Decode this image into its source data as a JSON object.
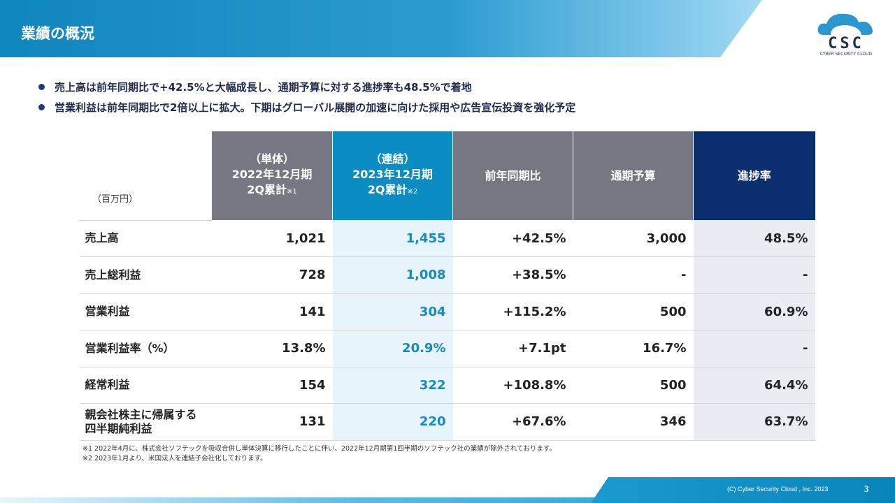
{
  "title": "業績の概況",
  "logo": {
    "text": "CSC",
    "subtitle": "CYBER SECURITY CLOUD",
    "color": "#1f3350"
  },
  "bullets": [
    "売上高は前年同期比で+42.5%と大幅成長し、通期予算に対する進捗率も48.5%で着地",
    "営業利益は前年同期比で2倍以上に拡大。下期はグローバル展開の加速に向けた採用や広告宣伝投資を強化予定"
  ],
  "table": {
    "unit": "（百万円）",
    "headers": [
      {
        "l1": "（単体）",
        "l2": "2022年12月期",
        "l3": "2Q累計",
        "note": "※1",
        "color": "#777783"
      },
      {
        "l1": "（連結）",
        "l2": "2023年12月期",
        "l3": "2Q累計",
        "note": "※2",
        "color": "#0b8cc2"
      },
      {
        "l1": "前年同期比",
        "color": "#777783"
      },
      {
        "l1": "通期予算",
        "color": "#777783"
      },
      {
        "l1": "進捗率",
        "color": "#0a2f6e"
      }
    ],
    "rows": [
      {
        "label": "売上高",
        "v": [
          "1,021",
          "1,455",
          "+42.5%",
          "3,000",
          "48.5%"
        ]
      },
      {
        "label": "売上総利益",
        "v": [
          "728",
          "1,008",
          "+38.5%",
          "-",
          "-"
        ]
      },
      {
        "label": "営業利益",
        "v": [
          "141",
          "304",
          "+115.2%",
          "500",
          "60.9%"
        ]
      },
      {
        "label": "営業利益率（%）",
        "v": [
          "13.8%",
          "20.9%",
          "+7.1pt",
          "16.7%",
          "-"
        ]
      },
      {
        "label": "経常利益",
        "v": [
          "154",
          "322",
          "+108.8%",
          "500",
          "64.4%"
        ]
      },
      {
        "label": "親会社株主に帰属する四半期純利益",
        "v": [
          "131",
          "220",
          "+67.6%",
          "346",
          "63.7%"
        ]
      }
    ]
  },
  "footnotes": [
    "※1 2022年4月に、株式会社ソフテックを吸収合併し単体決算に移行したことに伴い、2022年12月期第1四半期のソフテック社の業績が除外されております。",
    "※2 2023年1月より、米国法人を連結子会社化しております。"
  ],
  "footer": {
    "copyright": "(C) Cyber Security Cloud , Inc. 2023",
    "page": "3"
  }
}
